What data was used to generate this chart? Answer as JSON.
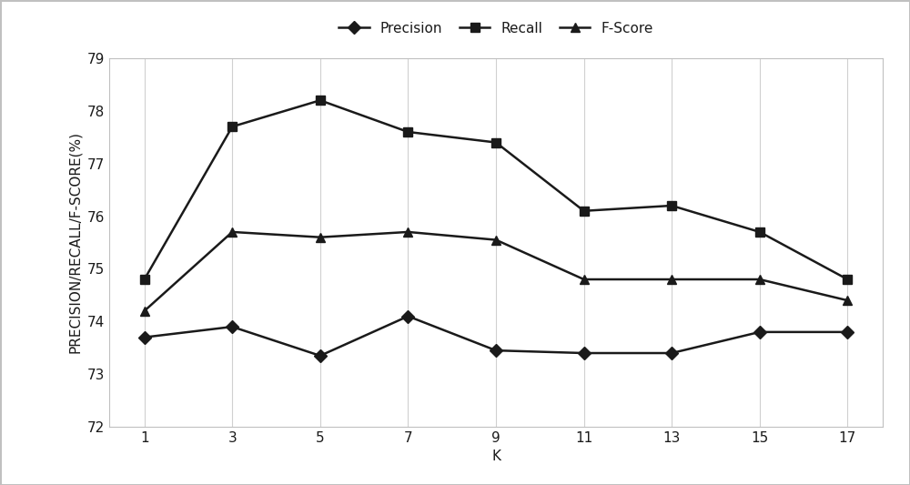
{
  "k_values": [
    1,
    3,
    5,
    7,
    9,
    11,
    13,
    15,
    17
  ],
  "precision": [
    73.7,
    73.9,
    73.35,
    74.1,
    73.45,
    73.4,
    73.4,
    73.8,
    73.8
  ],
  "recall": [
    74.8,
    77.7,
    78.2,
    77.6,
    77.4,
    76.1,
    76.2,
    75.7,
    74.8
  ],
  "fscore": [
    74.2,
    75.7,
    75.6,
    75.7,
    75.55,
    74.8,
    74.8,
    74.8,
    74.4
  ],
  "xlabel": "K",
  "ylabel": "PRECISION/RECALL/F-SCORE(%)",
  "ylim": [
    72,
    79
  ],
  "yticks": [
    72,
    73,
    74,
    75,
    76,
    77,
    78,
    79
  ],
  "xticks": [
    1,
    3,
    5,
    7,
    9,
    11,
    13,
    15,
    17
  ],
  "legend_labels": [
    "Precision",
    "Recall",
    "F-Score"
  ],
  "line_color": "#1a1a1a",
  "grid_color": "#d0d0d0",
  "background_color": "#ffffff",
  "border_color": "#c0c0c0",
  "marker_precision": "D",
  "marker_recall": "s",
  "marker_fscore": "^",
  "marker_size": 7,
  "linewidth": 1.8,
  "label_fontsize": 11,
  "tick_fontsize": 11,
  "legend_fontsize": 11
}
